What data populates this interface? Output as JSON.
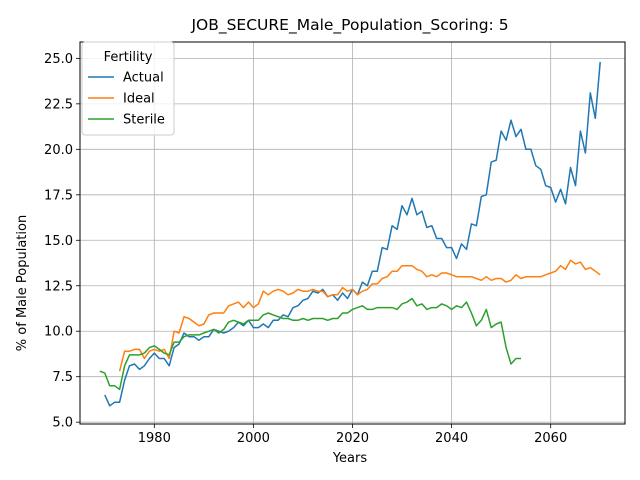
{
  "chart_data": {
    "type": "line",
    "title": "JOB_SECURE_Male_Population_Scoring: 5",
    "xlabel": "Years",
    "ylabel": "% of Male Population",
    "xlim": [
      1965,
      2075
    ],
    "ylim": [
      4.9,
      25.9
    ],
    "xticks": [
      1980,
      2000,
      2020,
      2040,
      2060
    ],
    "yticks": [
      5.0,
      7.5,
      10.0,
      12.5,
      15.0,
      17.5,
      20.0,
      22.5,
      25.0
    ],
    "ytick_labels": [
      "5.0",
      "7.5",
      "10.0",
      "12.5",
      "15.0",
      "17.5",
      "20.0",
      "22.5",
      "25.0"
    ],
    "grid": true,
    "legend": {
      "title": "Fertility",
      "position": "top-left"
    },
    "series": [
      {
        "name": "Actual",
        "color": "#1f77b4",
        "points": [
          [
            1970,
            6.5
          ],
          [
            1971,
            5.9
          ],
          [
            1972,
            6.1
          ],
          [
            1973,
            6.1
          ],
          [
            1974,
            7.3
          ],
          [
            1975,
            8.1
          ],
          [
            1976,
            8.2
          ],
          [
            1977,
            7.9
          ],
          [
            1978,
            8.1
          ],
          [
            1979,
            8.5
          ],
          [
            1980,
            8.8
          ],
          [
            1981,
            8.5
          ],
          [
            1982,
            8.5
          ],
          [
            1983,
            8.1
          ],
          [
            1984,
            9.1
          ],
          [
            1985,
            9.3
          ],
          [
            1986,
            9.9
          ],
          [
            1987,
            9.7
          ],
          [
            1988,
            9.7
          ],
          [
            1989,
            9.5
          ],
          [
            1990,
            9.7
          ],
          [
            1991,
            9.7
          ],
          [
            1992,
            10.1
          ],
          [
            1993,
            10.0
          ],
          [
            1994,
            9.9
          ],
          [
            1995,
            10.0
          ],
          [
            1996,
            10.2
          ],
          [
            1997,
            10.5
          ],
          [
            1998,
            10.3
          ],
          [
            1999,
            10.6
          ],
          [
            2000,
            10.2
          ],
          [
            2001,
            10.2
          ],
          [
            2002,
            10.4
          ],
          [
            2003,
            10.2
          ],
          [
            2004,
            10.6
          ],
          [
            2005,
            10.6
          ],
          [
            2006,
            10.9
          ],
          [
            2007,
            10.8
          ],
          [
            2008,
            11.3
          ],
          [
            2009,
            11.4
          ],
          [
            2010,
            11.7
          ],
          [
            2011,
            11.8
          ],
          [
            2012,
            12.2
          ],
          [
            2013,
            12.1
          ],
          [
            2014,
            12.3
          ],
          [
            2015,
            11.9
          ],
          [
            2016,
            12.0
          ],
          [
            2017,
            11.7
          ],
          [
            2018,
            12.1
          ],
          [
            2019,
            11.8
          ],
          [
            2020,
            12.3
          ],
          [
            2021,
            12.0
          ],
          [
            2022,
            12.7
          ],
          [
            2023,
            12.5
          ],
          [
            2024,
            13.3
          ],
          [
            2025,
            13.3
          ],
          [
            2026,
            14.6
          ],
          [
            2027,
            14.5
          ],
          [
            2028,
            15.8
          ],
          [
            2029,
            15.6
          ],
          [
            2030,
            16.9
          ],
          [
            2031,
            16.4
          ],
          [
            2032,
            17.3
          ],
          [
            2033,
            16.4
          ],
          [
            2034,
            16.6
          ],
          [
            2035,
            15.7
          ],
          [
            2036,
            15.8
          ],
          [
            2037,
            15.1
          ],
          [
            2038,
            15.1
          ],
          [
            2039,
            14.6
          ],
          [
            2040,
            14.6
          ],
          [
            2041,
            14.0
          ],
          [
            2042,
            14.8
          ],
          [
            2043,
            14.5
          ],
          [
            2044,
            15.9
          ],
          [
            2045,
            15.8
          ],
          [
            2046,
            17.4
          ],
          [
            2047,
            17.5
          ],
          [
            2048,
            19.3
          ],
          [
            2049,
            19.4
          ],
          [
            2050,
            21.0
          ],
          [
            2051,
            20.5
          ],
          [
            2052,
            21.6
          ],
          [
            2053,
            20.7
          ],
          [
            2054,
            21.1
          ],
          [
            2055,
            20.0
          ],
          [
            2056,
            20.0
          ],
          [
            2057,
            19.1
          ],
          [
            2058,
            18.9
          ],
          [
            2059,
            18.0
          ],
          [
            2060,
            17.9
          ],
          [
            2061,
            17.1
          ],
          [
            2062,
            17.8
          ],
          [
            2063,
            17.0
          ],
          [
            2064,
            19.0
          ],
          [
            2065,
            18.0
          ],
          [
            2066,
            21.0
          ],
          [
            2067,
            19.8
          ],
          [
            2068,
            23.1
          ],
          [
            2069,
            21.7
          ],
          [
            2070,
            24.8
          ]
        ]
      },
      {
        "name": "Ideal",
        "color": "#ff7f0e",
        "points": [
          [
            1973,
            7.8
          ],
          [
            1974,
            8.9
          ],
          [
            1975,
            8.9
          ],
          [
            1976,
            9.0
          ],
          [
            1977,
            9.0
          ],
          [
            1978,
            8.5
          ],
          [
            1979,
            8.9
          ],
          [
            1980,
            9.0
          ],
          [
            1981,
            8.9
          ],
          [
            1982,
            9.0
          ],
          [
            1983,
            8.5
          ],
          [
            1984,
            10.0
          ],
          [
            1985,
            9.9
          ],
          [
            1986,
            10.8
          ],
          [
            1987,
            10.7
          ],
          [
            1988,
            10.5
          ],
          [
            1989,
            10.3
          ],
          [
            1990,
            10.4
          ],
          [
            1991,
            10.9
          ],
          [
            1992,
            11.0
          ],
          [
            1993,
            11.0
          ],
          [
            1994,
            11.0
          ],
          [
            1995,
            11.4
          ],
          [
            1996,
            11.5
          ],
          [
            1997,
            11.6
          ],
          [
            1998,
            11.3
          ],
          [
            1999,
            11.6
          ],
          [
            2000,
            11.3
          ],
          [
            2001,
            11.5
          ],
          [
            2002,
            12.2
          ],
          [
            2003,
            12.0
          ],
          [
            2004,
            12.2
          ],
          [
            2005,
            12.3
          ],
          [
            2006,
            12.2
          ],
          [
            2007,
            12.0
          ],
          [
            2008,
            12.1
          ],
          [
            2009,
            12.3
          ],
          [
            2010,
            12.2
          ],
          [
            2011,
            12.2
          ],
          [
            2012,
            12.3
          ],
          [
            2013,
            12.2
          ],
          [
            2014,
            12.2
          ],
          [
            2015,
            11.9
          ],
          [
            2016,
            12.0
          ],
          [
            2017,
            12.0
          ],
          [
            2018,
            12.4
          ],
          [
            2019,
            12.2
          ],
          [
            2020,
            12.3
          ],
          [
            2021,
            12.0
          ],
          [
            2022,
            12.2
          ],
          [
            2023,
            12.3
          ],
          [
            2024,
            12.6
          ],
          [
            2025,
            12.6
          ],
          [
            2026,
            12.9
          ],
          [
            2027,
            13.0
          ],
          [
            2028,
            13.3
          ],
          [
            2029,
            13.3
          ],
          [
            2030,
            13.6
          ],
          [
            2031,
            13.6
          ],
          [
            2032,
            13.6
          ],
          [
            2033,
            13.4
          ],
          [
            2034,
            13.3
          ],
          [
            2035,
            13.0
          ],
          [
            2036,
            13.1
          ],
          [
            2037,
            13.0
          ],
          [
            2038,
            13.2
          ],
          [
            2039,
            13.2
          ],
          [
            2040,
            13.1
          ],
          [
            2041,
            13.0
          ],
          [
            2042,
            13.0
          ],
          [
            2043,
            13.0
          ],
          [
            2044,
            13.0
          ],
          [
            2045,
            12.9
          ],
          [
            2046,
            12.8
          ],
          [
            2047,
            13.0
          ],
          [
            2048,
            12.8
          ],
          [
            2049,
            12.9
          ],
          [
            2050,
            12.9
          ],
          [
            2051,
            12.7
          ],
          [
            2052,
            12.8
          ],
          [
            2053,
            13.1
          ],
          [
            2054,
            12.9
          ],
          [
            2055,
            13.0
          ],
          [
            2056,
            13.0
          ],
          [
            2057,
            13.0
          ],
          [
            2058,
            13.0
          ],
          [
            2059,
            13.1
          ],
          [
            2060,
            13.2
          ],
          [
            2061,
            13.3
          ],
          [
            2062,
            13.6
          ],
          [
            2063,
            13.4
          ],
          [
            2064,
            13.9
          ],
          [
            2065,
            13.7
          ],
          [
            2066,
            13.8
          ],
          [
            2067,
            13.4
          ],
          [
            2068,
            13.5
          ],
          [
            2069,
            13.3
          ],
          [
            2070,
            13.1
          ]
        ]
      },
      {
        "name": "Sterile",
        "color": "#2ca02c",
        "points": [
          [
            1969,
            7.8
          ],
          [
            1970,
            7.7
          ],
          [
            1971,
            7.0
          ],
          [
            1972,
            7.0
          ],
          [
            1973,
            6.8
          ],
          [
            1974,
            8.1
          ],
          [
            1975,
            8.7
          ],
          [
            1976,
            8.7
          ],
          [
            1977,
            8.7
          ],
          [
            1978,
            8.8
          ],
          [
            1979,
            9.1
          ],
          [
            1980,
            9.2
          ],
          [
            1981,
            9.0
          ],
          [
            1982,
            8.8
          ],
          [
            1983,
            8.7
          ],
          [
            1984,
            9.4
          ],
          [
            1985,
            9.4
          ],
          [
            1986,
            9.7
          ],
          [
            1987,
            9.8
          ],
          [
            1988,
            9.8
          ],
          [
            1989,
            9.8
          ],
          [
            1990,
            9.9
          ],
          [
            1991,
            10.0
          ],
          [
            1992,
            10.1
          ],
          [
            1993,
            9.9
          ],
          [
            1994,
            10.1
          ],
          [
            1995,
            10.5
          ],
          [
            1996,
            10.6
          ],
          [
            1997,
            10.5
          ],
          [
            1998,
            10.4
          ],
          [
            1999,
            10.6
          ],
          [
            2000,
            10.6
          ],
          [
            2001,
            10.6
          ],
          [
            2002,
            10.9
          ],
          [
            2003,
            11.0
          ],
          [
            2004,
            10.9
          ],
          [
            2005,
            10.8
          ],
          [
            2006,
            10.7
          ],
          [
            2007,
            10.7
          ],
          [
            2008,
            10.6
          ],
          [
            2009,
            10.6
          ],
          [
            2010,
            10.7
          ],
          [
            2011,
            10.6
          ],
          [
            2012,
            10.7
          ],
          [
            2013,
            10.7
          ],
          [
            2014,
            10.7
          ],
          [
            2015,
            10.6
          ],
          [
            2016,
            10.7
          ],
          [
            2017,
            10.7
          ],
          [
            2018,
            11.0
          ],
          [
            2019,
            11.0
          ],
          [
            2020,
            11.2
          ],
          [
            2021,
            11.3
          ],
          [
            2022,
            11.4
          ],
          [
            2023,
            11.2
          ],
          [
            2024,
            11.2
          ],
          [
            2025,
            11.3
          ],
          [
            2026,
            11.3
          ],
          [
            2027,
            11.3
          ],
          [
            2028,
            11.3
          ],
          [
            2029,
            11.2
          ],
          [
            2030,
            11.5
          ],
          [
            2031,
            11.6
          ],
          [
            2032,
            11.8
          ],
          [
            2033,
            11.4
          ],
          [
            2034,
            11.5
          ],
          [
            2035,
            11.2
          ],
          [
            2036,
            11.3
          ],
          [
            2037,
            11.3
          ],
          [
            2038,
            11.5
          ],
          [
            2039,
            11.4
          ],
          [
            2040,
            11.2
          ],
          [
            2041,
            11.4
          ],
          [
            2042,
            11.3
          ],
          [
            2043,
            11.6
          ],
          [
            2044,
            11.0
          ],
          [
            2045,
            10.3
          ],
          [
            2046,
            10.6
          ],
          [
            2047,
            11.2
          ],
          [
            2048,
            10.2
          ],
          [
            2049,
            10.4
          ],
          [
            2050,
            10.5
          ],
          [
            2051,
            9.1
          ],
          [
            2052,
            8.2
          ],
          [
            2053,
            8.5
          ],
          [
            2054,
            8.5
          ]
        ]
      }
    ]
  }
}
